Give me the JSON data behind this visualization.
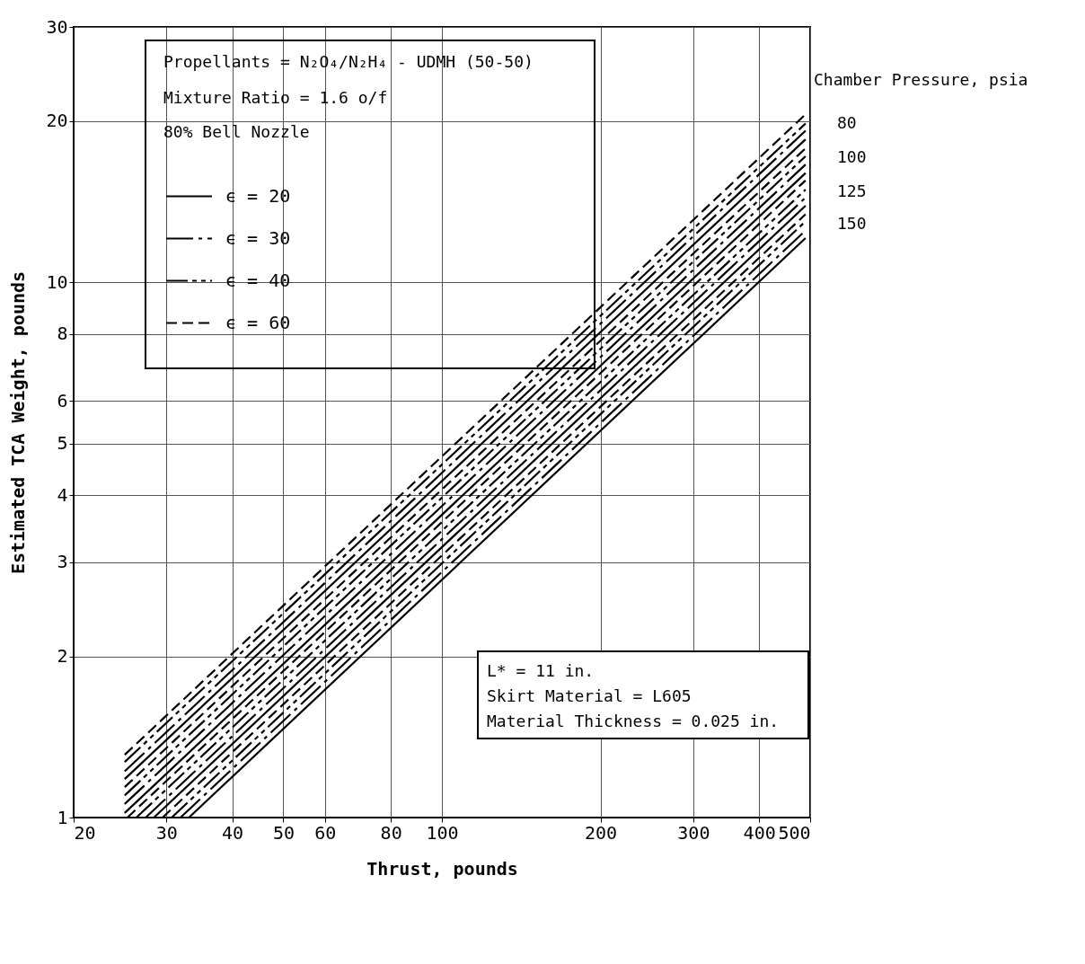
{
  "chart_data": {
    "type": "line",
    "xlabel": "Thrust, pounds",
    "ylabel": "Estimated TCA Weight, pounds",
    "log": "xy",
    "grid": true,
    "legend": "top left",
    "marker": "none",
    "xlim": [
      20,
      500
    ],
    "xticks": [
      20,
      30,
      40,
      50,
      60,
      80,
      100,
      200,
      300,
      400,
      500
    ],
    "ylim": [
      1,
      30
    ],
    "yticks": [
      1,
      2,
      3,
      4,
      5,
      6,
      8,
      10,
      20,
      30
    ],
    "series": [
      {
        "name": "ϵ = 20",
        "color": "#000000",
        "line_style": "solid",
        "x": [
          25,
          490
        ],
        "values": [
          1.18,
          18.5
        ]
      },
      {
        "name": "ϵ = 30",
        "color": "#000000",
        "line_style": "dashdot",
        "x": [
          25,
          490
        ],
        "values": [
          1.22,
          19.2
        ]
      },
      {
        "name": "ϵ = 40",
        "color": "#000000",
        "line_style": "dashdotdot",
        "x": [
          25,
          490
        ],
        "values": [
          1.27,
          19.8
        ]
      },
      {
        "name": "ϵ = 60",
        "color": "#000000",
        "line_style": "dashed",
        "x": [
          25,
          490
        ],
        "values": [
          1.31,
          20.6
        ]
      },
      {
        "color": "#000000",
        "line_style": "solid",
        "x": [
          25,
          490
        ],
        "values": [
          1.02,
          16.0
        ]
      },
      {
        "color": "#000000",
        "line_style": "dashdot",
        "x": [
          25,
          490
        ],
        "values": [
          1.06,
          16.6
        ]
      },
      {
        "color": "#000000",
        "line_style": "dashdotdot",
        "x": [
          25,
          490
        ],
        "values": [
          1.1,
          17.2
        ]
      },
      {
        "color": "#000000",
        "line_style": "dashed",
        "x": [
          25,
          490
        ],
        "values": [
          1.14,
          17.8
        ]
      },
      {
        "color": "#000000",
        "line_style": "solid",
        "x": [
          28.4,
          490
        ],
        "values": [
          1,
          13.9
        ]
      },
      {
        "color": "#000000",
        "line_style": "dashdot",
        "x": [
          27.4,
          490
        ],
        "values": [
          1,
          14.4
        ]
      },
      {
        "color": "#000000",
        "line_style": "dashdotdot",
        "x": [
          26.3,
          490
        ],
        "values": [
          1,
          14.9
        ]
      },
      {
        "color": "#000000",
        "line_style": "dashed",
        "x": [
          25.3,
          490
        ],
        "values": [
          1,
          15.5
        ]
      },
      {
        "color": "#000000",
        "line_style": "solid",
        "x": [
          33.1,
          490
        ],
        "values": [
          1,
          12.1
        ]
      },
      {
        "color": "#000000",
        "line_style": "dashdot",
        "x": [
          31.9,
          490
        ],
        "values": [
          1,
          12.5
        ]
      },
      {
        "color": "#000000",
        "line_style": "dashdotdot",
        "x": [
          30.7,
          490
        ],
        "values": [
          1,
          13.0
        ]
      },
      {
        "color": "#000000",
        "line_style": "dashed",
        "x": [
          29.5,
          490
        ],
        "values": [
          1,
          13.4
        ]
      }
    ],
    "annotations": [
      "Propellants = N₂O₄/N₂H₄ - UDMH (50-50)",
      "Mixture Ratio = 1.6 o/f",
      "80% Bell Nozzle",
      "L* = 11 in.",
      "Skirt Material = L605",
      "Material Thickness = 0.025 in.",
      "Chamber Pressure, psia",
      "80",
      "100",
      "125",
      "150"
    ]
  }
}
